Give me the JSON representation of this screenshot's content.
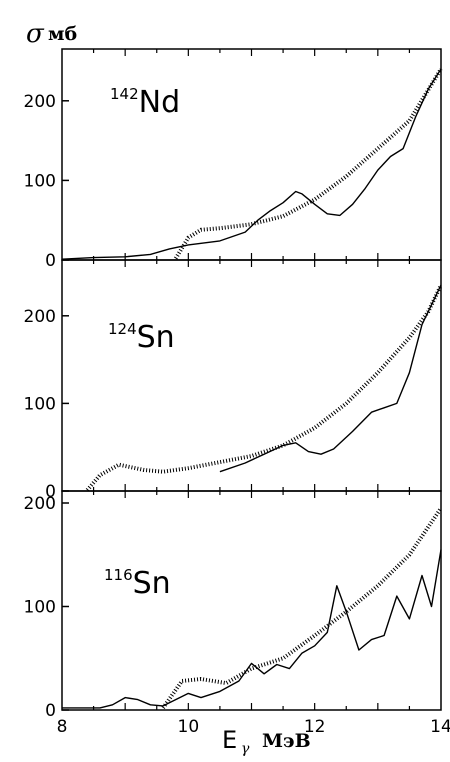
{
  "figure": {
    "ylabel": {
      "symbol": "σ",
      "unit": "мб"
    },
    "xlabel": {
      "symbol": "E",
      "subscript": "γ",
      "unit": "МэВ"
    }
  },
  "chart_data": [
    {
      "type": "line",
      "panel_label": {
        "mass": "142",
        "element": "Nd"
      },
      "xlim": [
        8,
        14
      ],
      "ylim": [
        0,
        250
      ],
      "y_ticks": [
        0,
        100,
        200
      ],
      "x_ticks": [
        8,
        10,
        12,
        14
      ],
      "grid": false,
      "series": [
        {
          "style": "solid",
          "points": [
            [
              8.0,
              1
            ],
            [
              8.5,
              3
            ],
            [
              9.0,
              4
            ],
            [
              9.4,
              7
            ],
            [
              9.7,
              14
            ],
            [
              10.0,
              19
            ],
            [
              10.5,
              24
            ],
            [
              10.9,
              35
            ],
            [
              11.1,
              50
            ],
            [
              11.3,
              62
            ],
            [
              11.5,
              72
            ],
            [
              11.7,
              86
            ],
            [
              11.8,
              83
            ],
            [
              12.0,
              70
            ],
            [
              12.2,
              58
            ],
            [
              12.4,
              56
            ],
            [
              12.6,
              70
            ],
            [
              12.8,
              90
            ],
            [
              13.0,
              113
            ],
            [
              13.2,
              130
            ],
            [
              13.4,
              140
            ],
            [
              13.6,
              180
            ],
            [
              13.8,
              215
            ],
            [
              14.0,
              240
            ]
          ]
        },
        {
          "style": "dashed",
          "points": [
            [
              9.8,
              2
            ],
            [
              10.0,
              28
            ],
            [
              10.2,
              38
            ],
            [
              10.5,
              40
            ],
            [
              11.0,
              45
            ],
            [
              11.5,
              55
            ],
            [
              12.0,
              76
            ],
            [
              12.5,
              105
            ],
            [
              13.0,
              140
            ],
            [
              13.5,
              175
            ],
            [
              14.0,
              240
            ]
          ]
        }
      ]
    },
    {
      "type": "line",
      "panel_label": {
        "mass": "124",
        "element": "Sn"
      },
      "xlim": [
        8,
        14
      ],
      "ylim": [
        0,
        250
      ],
      "y_ticks": [
        0,
        100,
        200
      ],
      "x_ticks": [
        8,
        10,
        12,
        14
      ],
      "grid": false,
      "series": [
        {
          "style": "solid",
          "points": [
            [
              10.5,
              22
            ],
            [
              10.9,
              32
            ],
            [
              11.2,
              42
            ],
            [
              11.5,
              52
            ],
            [
              11.7,
              55
            ],
            [
              11.9,
              45
            ],
            [
              12.1,
              42
            ],
            [
              12.3,
              48
            ],
            [
              12.6,
              68
            ],
            [
              12.9,
              90
            ],
            [
              13.1,
              95
            ],
            [
              13.3,
              100
            ],
            [
              13.5,
              135
            ],
            [
              13.7,
              190
            ],
            [
              14.0,
              235
            ]
          ]
        },
        {
          "style": "dashed",
          "points": [
            [
              8.4,
              1
            ],
            [
              8.6,
              18
            ],
            [
              8.9,
              30
            ],
            [
              9.3,
              24
            ],
            [
              9.6,
              22
            ],
            [
              10.0,
              26
            ],
            [
              10.5,
              33
            ],
            [
              11.0,
              40
            ],
            [
              11.5,
              52
            ],
            [
              12.0,
              72
            ],
            [
              12.5,
              100
            ],
            [
              13.0,
              135
            ],
            [
              13.5,
              175
            ],
            [
              13.8,
              205
            ],
            [
              14.0,
              235
            ]
          ]
        }
      ]
    },
    {
      "type": "line",
      "panel_label": {
        "mass": "116",
        "element": "Sn"
      },
      "xlim": [
        8,
        14
      ],
      "ylim": [
        0,
        200
      ],
      "y_ticks": [
        0,
        100,
        200
      ],
      "x_ticks": [
        8,
        10,
        12,
        14
      ],
      "grid": false,
      "series": [
        {
          "style": "solid",
          "points": [
            [
              8.0,
              2
            ],
            [
              8.6,
              2
            ],
            [
              8.8,
              5
            ],
            [
              9.0,
              12
            ],
            [
              9.2,
              10
            ],
            [
              9.4,
              5
            ],
            [
              9.6,
              4
            ],
            [
              9.8,
              10
            ],
            [
              10.0,
              16
            ],
            [
              10.2,
              12
            ],
            [
              10.5,
              18
            ],
            [
              10.8,
              28
            ],
            [
              11.0,
              45
            ],
            [
              11.2,
              35
            ],
            [
              11.4,
              44
            ],
            [
              11.6,
              40
            ],
            [
              11.8,
              55
            ],
            [
              12.0,
              62
            ],
            [
              12.2,
              75
            ],
            [
              12.35,
              120
            ],
            [
              12.5,
              95
            ],
            [
              12.7,
              58
            ],
            [
              12.9,
              68
            ],
            [
              13.1,
              72
            ],
            [
              13.3,
              110
            ],
            [
              13.5,
              88
            ],
            [
              13.7,
              130
            ],
            [
              13.85,
              100
            ],
            [
              14.0,
              155
            ]
          ]
        },
        {
          "style": "dashed",
          "points": [
            [
              9.6,
              2
            ],
            [
              9.9,
              28
            ],
            [
              10.2,
              30
            ],
            [
              10.6,
              26
            ],
            [
              11.0,
              40
            ],
            [
              11.5,
              50
            ],
            [
              12.0,
              72
            ],
            [
              12.5,
              95
            ],
            [
              13.0,
              120
            ],
            [
              13.5,
              150
            ],
            [
              14.0,
              195
            ]
          ]
        }
      ]
    }
  ]
}
